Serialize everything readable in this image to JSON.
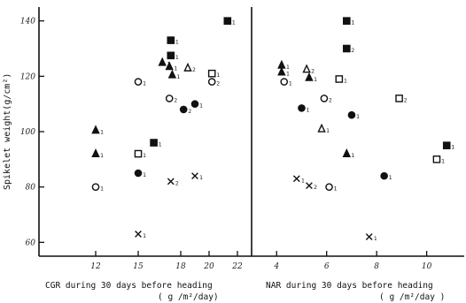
{
  "chart_data": [
    {
      "type": "scatter",
      "xlabel": "CGR during 30 days before heading",
      "xunit": "( g /m²/day)",
      "ylabel": "Spikelet weight(g/cm²)",
      "xticks": [
        "12",
        "15",
        "18",
        "20",
        "22"
      ],
      "yticks": [
        "60",
        "80",
        "100",
        "120",
        "140"
      ],
      "ylim": [
        55,
        145
      ],
      "points": [
        {
          "x": 12.0,
          "y": 100.5,
          "marker": "triangle-filled",
          "label": "1"
        },
        {
          "x": 12.0,
          "y": 92.0,
          "marker": "triangle-filled",
          "label": "1"
        },
        {
          "x": 12.0,
          "y": 80.0,
          "marker": "circle-open",
          "label": "1"
        },
        {
          "x": 15.0,
          "y": 118.0,
          "marker": "circle-open",
          "label": "1"
        },
        {
          "x": 15.0,
          "y": 92.0,
          "marker": "square-open",
          "label": "1"
        },
        {
          "x": 15.0,
          "y": 85.0,
          "marker": "circle-filled",
          "label": "1"
        },
        {
          "x": 15.0,
          "y": 63.0,
          "marker": "cross",
          "label": "1"
        },
        {
          "x": 16.1,
          "y": 96.0,
          "marker": "square-filled",
          "label": "1"
        },
        {
          "x": 16.7,
          "y": 125.0,
          "marker": "triangle-filled",
          "label": "1"
        },
        {
          "x": 17.3,
          "y": 133.0,
          "marker": "square-filled",
          "label": "1"
        },
        {
          "x": 17.3,
          "y": 127.5,
          "marker": "square-filled",
          "label": "1"
        },
        {
          "x": 17.2,
          "y": 123.5,
          "marker": "triangle-filled",
          "label": "1"
        },
        {
          "x": 17.4,
          "y": 120.5,
          "marker": "triangle-filled",
          "label": "1"
        },
        {
          "x": 17.2,
          "y": 112.0,
          "marker": "circle-open",
          "label": "2"
        },
        {
          "x": 17.3,
          "y": 82.0,
          "marker": "cross",
          "label": "2"
        },
        {
          "x": 18.2,
          "y": 108.0,
          "marker": "circle-filled",
          "label": "2"
        },
        {
          "x": 18.5,
          "y": 123.0,
          "marker": "triangle-open",
          "label": "2"
        },
        {
          "x": 19.0,
          "y": 110.0,
          "marker": "circle-filled",
          "label": "1"
        },
        {
          "x": 19.0,
          "y": 84.0,
          "marker": "cross",
          "label": "1"
        },
        {
          "x": 20.2,
          "y": 121.0,
          "marker": "square-open",
          "label": "1"
        },
        {
          "x": 20.2,
          "y": 118.0,
          "marker": "circle-open",
          "label": "2"
        },
        {
          "x": 21.3,
          "y": 140.0,
          "marker": "square-filled",
          "label": "1"
        }
      ]
    },
    {
      "type": "scatter",
      "xlabel": "NAR during 30 days before heading",
      "xunit": "( g /m²/day )",
      "xticks": [
        "4",
        "6",
        "8",
        "10"
      ],
      "ylim": [
        55,
        145
      ],
      "points": [
        {
          "x": 4.2,
          "y": 124.0,
          "marker": "triangle-filled",
          "label": "1"
        },
        {
          "x": 4.2,
          "y": 121.5,
          "marker": "triangle-filled",
          "label": "1"
        },
        {
          "x": 4.3,
          "y": 118.0,
          "marker": "circle-open",
          "label": "1"
        },
        {
          "x": 4.8,
          "y": 83.0,
          "marker": "cross",
          "label": "1"
        },
        {
          "x": 5.2,
          "y": 122.5,
          "marker": "triangle-open",
          "label": "2"
        },
        {
          "x": 5.3,
          "y": 119.5,
          "marker": "triangle-filled",
          "label": "1"
        },
        {
          "x": 5.0,
          "y": 108.5,
          "marker": "circle-filled",
          "label": "1"
        },
        {
          "x": 5.3,
          "y": 80.5,
          "marker": "cross",
          "label": "2"
        },
        {
          "x": 5.8,
          "y": 101.0,
          "marker": "triangle-open",
          "label": "1"
        },
        {
          "x": 5.9,
          "y": 112.0,
          "marker": "circle-open",
          "label": "2"
        },
        {
          "x": 6.1,
          "y": 80.0,
          "marker": "circle-open",
          "label": "1"
        },
        {
          "x": 6.5,
          "y": 119.0,
          "marker": "square-open",
          "label": "1"
        },
        {
          "x": 6.8,
          "y": 140.0,
          "marker": "square-filled",
          "label": "1"
        },
        {
          "x": 6.8,
          "y": 130.0,
          "marker": "square-filled",
          "label": "2"
        },
        {
          "x": 7.0,
          "y": 106.0,
          "marker": "circle-filled",
          "label": "1"
        },
        {
          "x": 6.8,
          "y": 92.0,
          "marker": "triangle-filled",
          "label": "1"
        },
        {
          "x": 7.7,
          "y": 62.0,
          "marker": "cross",
          "label": "1"
        },
        {
          "x": 8.3,
          "y": 84.0,
          "marker": "circle-filled",
          "label": "1"
        },
        {
          "x": 8.9,
          "y": 112.0,
          "marker": "square-open",
          "label": "2"
        },
        {
          "x": 10.4,
          "y": 90.0,
          "marker": "square-open",
          "label": "1"
        },
        {
          "x": 10.8,
          "y": 95.0,
          "marker": "square-filled",
          "label": "1"
        }
      ]
    }
  ]
}
